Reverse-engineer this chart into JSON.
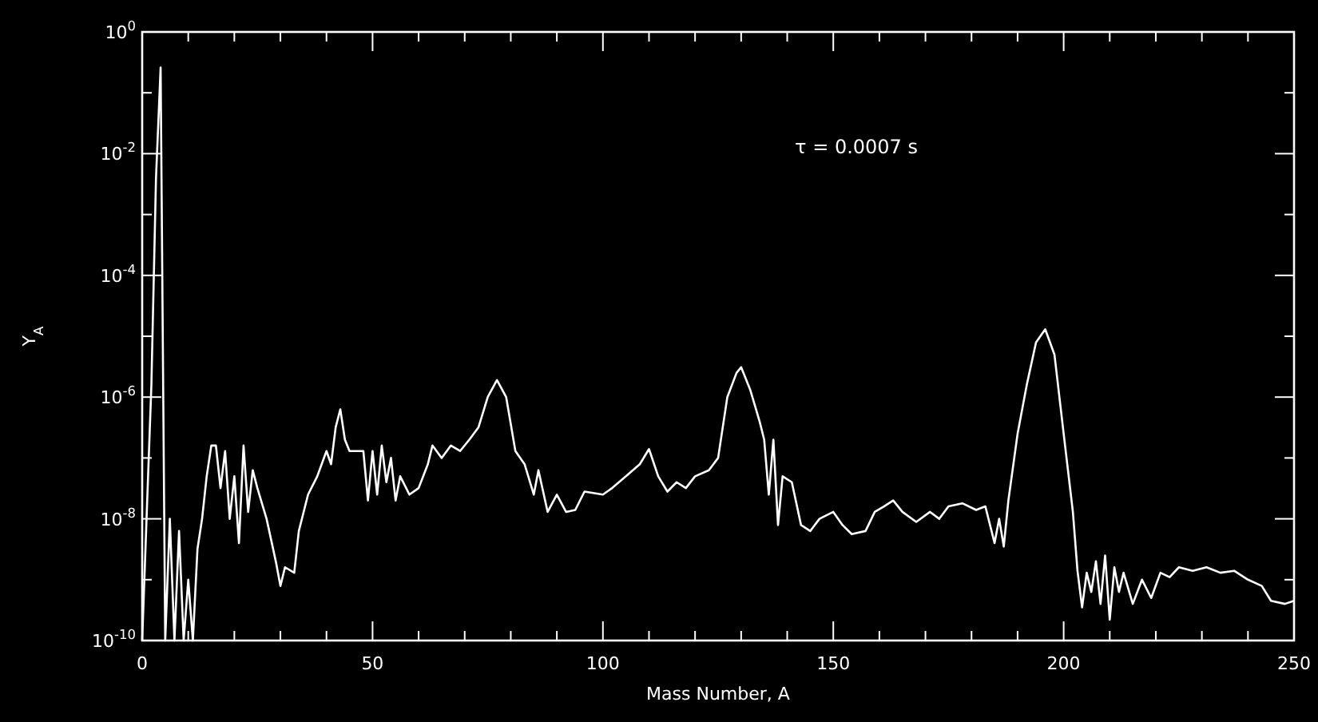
{
  "chart_data": {
    "type": "line",
    "xlabel": "Mass Number, A",
    "ylabel": "Y$_{A}$",
    "annotations": [
      "τ = 0.0007 s"
    ],
    "log": "y",
    "xlim": [
      0,
      250
    ],
    "ylim": [
      1e-10,
      1
    ],
    "xticks": [
      0,
      {
        "value": 10,
        "label": null
      },
      {
        "value": 20,
        "label": null
      },
      {
        "value": 30,
        "label": null
      },
      {
        "value": 40,
        "label": null
      },
      50,
      {
        "value": 60,
        "label": null
      },
      {
        "value": 70,
        "label": null
      },
      {
        "value": 80,
        "label": null
      },
      {
        "value": 90,
        "label": null
      },
      100,
      {
        "value": 110,
        "label": null
      },
      {
        "value": 120,
        "label": null
      },
      {
        "value": 130,
        "label": null
      },
      {
        "value": 140,
        "label": null
      },
      150,
      {
        "value": 160,
        "label": null
      },
      {
        "value": 170,
        "label": null
      },
      {
        "value": 180,
        "label": null
      },
      {
        "value": 190,
        "label": null
      },
      200,
      {
        "value": 210,
        "label": null
      },
      {
        "value": 220,
        "label": null
      },
      {
        "value": 230,
        "label": null
      },
      {
        "value": 240,
        "label": null
      },
      250
    ],
    "yticks": [
      {
        "value": 1e-10,
        "label": "10$^{-10}$"
      },
      {
        "value": 1e-09,
        "label": null
      },
      {
        "value": 1e-08,
        "label": "10$^{-8}$"
      },
      {
        "value": 1e-07,
        "label": null
      },
      {
        "value": 1e-06,
        "label": "10$^{-6}$"
      },
      {
        "value": 1e-05,
        "label": null
      },
      {
        "value": 0.0001,
        "label": "10$^{-4}$"
      },
      {
        "value": 0.001,
        "label": null
      },
      {
        "value": 0.01,
        "label": "10$^{-2}$"
      },
      {
        "value": 0.1,
        "label": null
      },
      {
        "value": 1,
        "label": "10$^{0}$"
      }
    ],
    "series": [
      {
        "color": "#ffffff",
        "x": [
          0,
          1,
          2,
          3,
          4,
          5,
          6,
          7,
          8,
          9,
          10,
          11,
          12,
          13,
          14,
          15,
          16,
          17,
          18,
          19,
          20,
          21,
          22,
          23,
          24,
          25,
          27,
          29,
          30,
          31,
          33,
          34,
          36,
          38,
          40,
          41,
          42,
          43,
          44,
          45,
          48,
          49,
          50,
          51,
          52,
          53,
          54,
          55,
          56,
          58,
          60,
          62,
          63,
          65,
          67,
          69,
          71,
          73,
          75,
          77,
          79,
          81,
          83,
          85,
          86,
          88,
          90,
          92,
          94,
          96,
          100,
          102,
          105,
          108,
          110,
          112,
          114,
          116,
          118,
          120,
          123,
          125,
          127,
          129,
          130,
          132,
          134,
          135,
          136,
          137,
          138,
          139,
          141,
          143,
          145,
          147,
          150,
          152,
          154,
          157,
          159,
          161,
          163,
          165,
          168,
          171,
          173,
          175,
          178,
          181,
          183,
          185,
          186,
          187,
          188,
          190,
          192,
          194,
          196,
          198,
          200,
          202,
          203,
          204,
          205,
          206,
          207,
          208,
          209,
          210,
          211,
          212,
          213,
          215,
          217,
          219,
          221,
          223,
          225,
          228,
          231,
          234,
          237,
          240,
          243,
          245,
          248,
          250
        ],
        "values": [
          1e-10,
          1.3e-08,
          1.6e-06,
          0.004,
          0.26,
          1e-10,
          1e-08,
          1e-10,
          6.3e-09,
          1e-10,
          1e-09,
          1e-10,
          3.2e-09,
          1e-08,
          5e-08,
          1.6e-07,
          1.6e-07,
          3.2e-08,
          1.3e-07,
          1e-08,
          5e-08,
          4e-09,
          1.6e-07,
          1.3e-08,
          6.3e-08,
          3.2e-08,
          1e-08,
          2e-09,
          7.9e-10,
          1.6e-09,
          1.3e-09,
          6.3e-09,
          2.5e-08,
          5e-08,
          1.3e-07,
          7.9e-08,
          3.2e-07,
          6.3e-07,
          2e-07,
          1.3e-07,
          1.3e-07,
          2e-08,
          1.3e-07,
          2.5e-08,
          1.6e-07,
          4e-08,
          1e-07,
          2e-08,
          5e-08,
          2.5e-08,
          3.2e-08,
          7.9e-08,
          1.6e-07,
          1e-07,
          1.6e-07,
          1.3e-07,
          2e-07,
          3.2e-07,
          1e-06,
          1.9e-06,
          1e-06,
          1.3e-07,
          7.9e-08,
          2.5e-08,
          6.3e-08,
          1.3e-08,
          2.5e-08,
          1.3e-08,
          1.4e-08,
          2.8e-08,
          2.5e-08,
          3.2e-08,
          5e-08,
          7.9e-08,
          1.4e-07,
          5e-08,
          2.8e-08,
          4e-08,
          3.2e-08,
          5e-08,
          6.3e-08,
          1e-07,
          1e-06,
          2.5e-06,
          3.1e-06,
          1.3e-06,
          4e-07,
          2e-07,
          2.5e-08,
          2e-07,
          7.9e-09,
          5e-08,
          4e-08,
          7.9e-09,
          6.3e-09,
          1e-08,
          1.3e-08,
          7.9e-09,
          5.6e-09,
          6.3e-09,
          1.3e-08,
          1.6e-08,
          2e-08,
          1.3e-08,
          8.9e-09,
          1.3e-08,
          1e-08,
          1.6e-08,
          1.8e-08,
          1.4e-08,
          1.6e-08,
          4e-09,
          1e-08,
          3.5e-09,
          2e-08,
          2.5e-07,
          1.6e-06,
          7.9e-06,
          1.3e-05,
          5e-06,
          2.5e-07,
          1.3e-08,
          1.4e-09,
          3.5e-10,
          1.3e-09,
          6.3e-10,
          2e-09,
          4e-10,
          2.5e-09,
          2.2e-10,
          1.6e-09,
          6.3e-10,
          1.3e-09,
          4e-10,
          1e-09,
          5e-10,
          1.3e-09,
          1.1e-09,
          1.6e-09,
          1.4e-09,
          1.6e-09,
          1.3e-09,
          1.4e-09,
          1e-09,
          7.9e-10,
          4.5e-10,
          4e-10,
          4.5e-10
        ]
      }
    ]
  }
}
